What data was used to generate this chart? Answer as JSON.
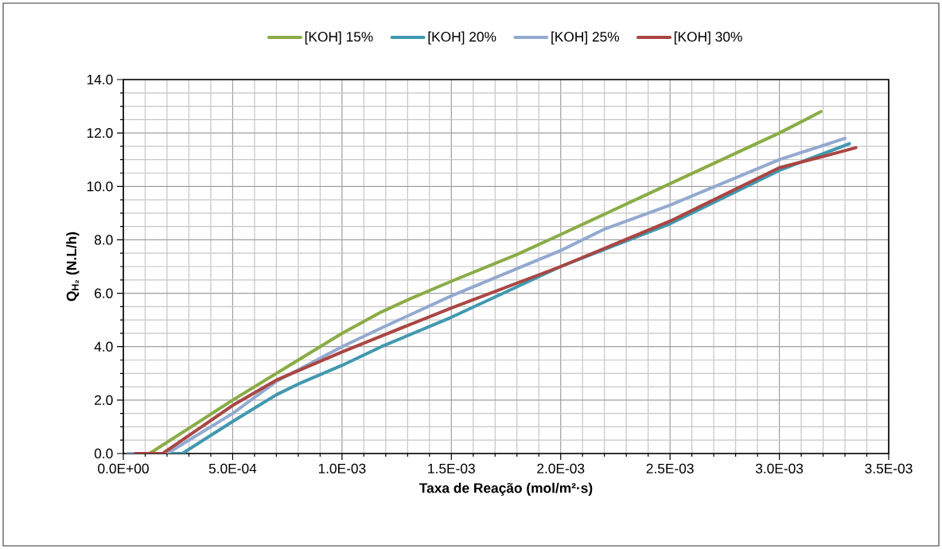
{
  "chart_data": {
    "type": "line",
    "xlabel": "Taxa de Reação (mol/m²·s)",
    "ylabel": "Q$_{H₂}$ (N.L/h)",
    "xlim": [
      0,
      0.0035
    ],
    "xticks": [
      {
        "value": 0,
        "label": "0.0E+00"
      },
      {
        "value": 0.0005,
        "label": "5.0E-04"
      },
      {
        "value": 0.001,
        "label": "1.0E-03"
      },
      {
        "value": 0.0015,
        "label": "1.5E-03"
      },
      {
        "value": 0.002,
        "label": "2.0E-03"
      },
      {
        "value": 0.0025,
        "label": "2.5E-03"
      },
      {
        "value": 0.003,
        "label": "3.0E-03"
      },
      {
        "value": 0.0035,
        "label": "3.5E-03"
      }
    ],
    "ylim": [
      0,
      14
    ],
    "yticks": [
      {
        "value": 0,
        "label": "0.0"
      },
      {
        "value": 2,
        "label": "2.0"
      },
      {
        "value": 4,
        "label": "4.0"
      },
      {
        "value": 6,
        "label": "6.0"
      },
      {
        "value": 8,
        "label": "8.0"
      },
      {
        "value": 10,
        "label": "10.0"
      },
      {
        "value": 12,
        "label": "12.0"
      },
      {
        "value": 14,
        "label": "14.0"
      }
    ],
    "grid": true,
    "legend": "top",
    "marker": "none",
    "line_style": "solid",
    "series": [
      {
        "name": "[KOH] 15%",
        "color": "#8aac46",
        "x": [
          2e-05,
          0.00012,
          0.0005,
          0.0007,
          0.001,
          0.00118,
          0.0013,
          0.0015,
          0.0018,
          0.002,
          0.0025,
          0.003,
          0.00319
        ],
        "values": [
          0,
          0,
          2.0,
          3.0,
          4.5,
          5.3,
          5.75,
          6.45,
          7.45,
          8.2,
          10.1,
          12.0,
          12.8
        ]
      },
      {
        "name": "[KOH] 20%",
        "color": "#4198af",
        "x": [
          0.0002,
          0.00027,
          0.0005,
          0.0007,
          0.0008,
          0.001,
          0.00118,
          0.0015,
          0.002,
          0.0025,
          0.003,
          0.00332
        ],
        "values": [
          0,
          0,
          1.2,
          2.2,
          2.6,
          3.3,
          4.0,
          5.1,
          7.0,
          8.6,
          10.6,
          11.6
        ]
      },
      {
        "name": "[KOH] 25%",
        "color": "#93a9cf",
        "x": [
          2e-05,
          0.0002,
          0.0005,
          0.0007,
          0.001,
          0.00118,
          0.0015,
          0.002,
          0.0022,
          0.0025,
          0.003,
          0.0033
        ],
        "values": [
          0,
          0,
          1.5,
          2.7,
          4.0,
          4.7,
          5.9,
          7.6,
          8.4,
          9.3,
          11.0,
          11.8
        ]
      },
      {
        "name": "[KOH] 30%",
        "color": "#aa4643",
        "x": [
          5.5e-05,
          0.00018,
          0.0005,
          0.0007,
          0.001,
          0.00118,
          0.0015,
          0.002,
          0.0025,
          0.00295,
          0.003,
          0.00319,
          0.00335
        ],
        "values": [
          0,
          0,
          1.8,
          2.75,
          3.8,
          4.4,
          5.45,
          7.0,
          8.7,
          10.5,
          10.7,
          11.1,
          11.45
        ]
      }
    ]
  }
}
